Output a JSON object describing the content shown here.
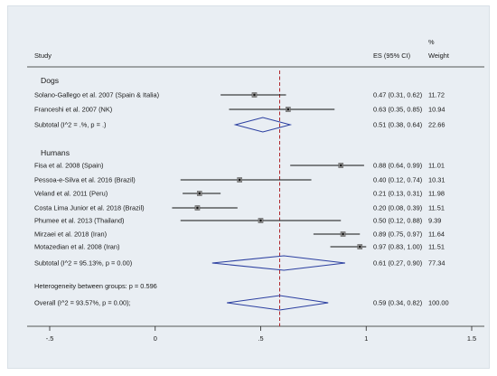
{
  "chart_data": {
    "type": "forest",
    "headers": {
      "study": "Study",
      "es_ci": "ES (95% CI)",
      "weight_top": "%",
      "weight_bottom": "Weight"
    },
    "xlim": [
      -0.5,
      1.5
    ],
    "xticks": [
      {
        "value": -0.5,
        "label": "-.5"
      },
      {
        "value": 0,
        "label": "0"
      },
      {
        "value": 0.5,
        "label": ".5"
      },
      {
        "value": 1,
        "label": "1"
      },
      {
        "value": 1.5,
        "label": "1.5"
      }
    ],
    "reference_line": 0.59,
    "reference_color": "#b0262b",
    "groups": [
      {
        "name": "Dogs",
        "studies": [
          {
            "label": "Solano-Gallego et al. 2007 (Spain & Italia)",
            "es": 0.47,
            "lo": 0.31,
            "hi": 0.62,
            "es_text": "0.47 (0.31, 0.62)",
            "weight": "11.72"
          },
          {
            "label": "Franceshi et al. 2007 (NK)",
            "es": 0.63,
            "lo": 0.35,
            "hi": 0.85,
            "es_text": "0.63 (0.35, 0.85)",
            "weight": "10.94"
          }
        ],
        "subtotal": {
          "label": "Subtotal  (I^2 = .%, p = .)",
          "es": 0.51,
          "lo": 0.38,
          "hi": 0.64,
          "es_text": "0.51 (0.38, 0.64)",
          "weight": "22.66"
        }
      },
      {
        "name": "Humans",
        "studies": [
          {
            "label": "Fisa et al. 2008 (Spain)",
            "es": 0.88,
            "lo": 0.64,
            "hi": 0.99,
            "es_text": "0.88 (0.64, 0.99)",
            "weight": "11.01"
          },
          {
            "label": "Pessoa-e-Silva et al. 2016 (Brazil)",
            "es": 0.4,
            "lo": 0.12,
            "hi": 0.74,
            "es_text": "0.40 (0.12, 0.74)",
            "weight": "10.31"
          },
          {
            "label": "Veland et al. 2011 (Peru)",
            "es": 0.21,
            "lo": 0.13,
            "hi": 0.31,
            "es_text": "0.21 (0.13, 0.31)",
            "weight": "11.98"
          },
          {
            "label": "Costa Lima Junior et al. 2018 (Brazil)",
            "es": 0.2,
            "lo": 0.08,
            "hi": 0.39,
            "es_text": "0.20 (0.08, 0.39)",
            "weight": "11.51"
          },
          {
            "label": "Phumee et al. 2013 (Thailand)",
            "es": 0.5,
            "lo": 0.12,
            "hi": 0.88,
            "es_text": "0.50 (0.12, 0.88)",
            "weight": "9.39"
          },
          {
            "label": "Mirzaei et al. 2018 (Iran)",
            "es": 0.89,
            "lo": 0.75,
            "hi": 0.97,
            "es_text": "0.89 (0.75, 0.97)",
            "weight": "11.64"
          },
          {
            "label": "Motazedian et al. 2008 (Iran)",
            "es": 0.97,
            "lo": 0.83,
            "hi": 1.0,
            "es_text": "0.97 (0.83, 1.00)",
            "weight": "11.51"
          }
        ],
        "subtotal": {
          "label": "Subtotal  (I^2 = 95.13%, p = 0.00)",
          "es": 0.61,
          "lo": 0.27,
          "hi": 0.9,
          "es_text": "0.61 (0.27, 0.90)",
          "weight": "77.34"
        }
      }
    ],
    "heterogeneity_text": "Heterogeneity between groups: p = 0.596",
    "overall": {
      "label": "Overall  (I^2 = 93.57%, p = 0.00);",
      "es": 0.59,
      "lo": 0.34,
      "hi": 0.82,
      "es_text": "0.59 (0.34, 0.82)",
      "weight": "100.00"
    }
  }
}
